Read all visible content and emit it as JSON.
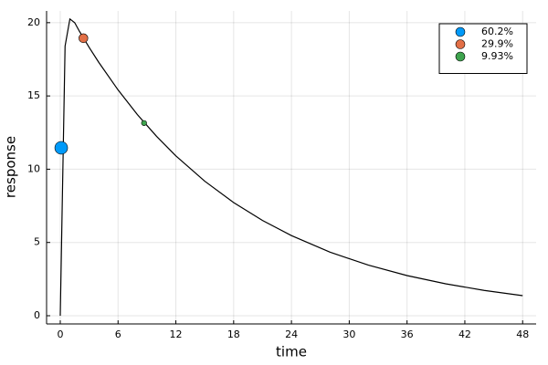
{
  "chart_data": {
    "type": "line",
    "xlabel": "time",
    "ylabel": "response",
    "xlim": [
      -1.42,
      49.4
    ],
    "ylim": [
      -0.56,
      20.8
    ],
    "xticks": [
      0,
      6,
      12,
      18,
      24,
      30,
      36,
      42,
      48
    ],
    "yticks": [
      0,
      5,
      10,
      15,
      20
    ],
    "grid": true,
    "legend": "top-right",
    "series": [
      {
        "type": "line",
        "color": "#000000",
        "x": [
          0,
          0.5,
          1,
          1.5,
          2,
          3,
          4,
          6,
          8,
          10,
          12,
          15,
          18,
          21,
          24,
          28,
          32,
          36,
          40,
          44,
          48
        ],
        "values": [
          0,
          18.4,
          20.25,
          20.0,
          19.4,
          18.31,
          17.29,
          15.41,
          13.73,
          12.24,
          10.91,
          9.18,
          7.72,
          6.5,
          5.47,
          4.34,
          3.45,
          2.74,
          2.18,
          1.73,
          1.37
        ]
      },
      {
        "type": "scatter",
        "name": "60.2%",
        "color": "#009af9",
        "x": [
          0.1
        ],
        "values": [
          11.46
        ],
        "sizes": [
          60.2
        ]
      },
      {
        "type": "scatter",
        "name": "29.9%",
        "color": "#e26f46",
        "x": [
          2.4
        ],
        "values": [
          18.94
        ],
        "sizes": [
          29.9
        ]
      },
      {
        "type": "scatter",
        "name": "9.93%",
        "color": "#3ea44e",
        "x": [
          8.7
        ],
        "values": [
          13.15
        ],
        "sizes": [
          9.93
        ]
      }
    ]
  }
}
